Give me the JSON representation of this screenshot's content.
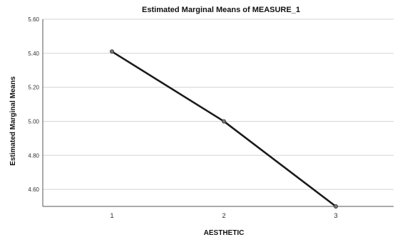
{
  "chart_data": {
    "type": "line",
    "title": "Estimated Marginal Means of MEASURE_1",
    "xlabel": "AESTHETIC",
    "ylabel": "Estimated Marginal Means",
    "categories": [
      "1",
      "2",
      "3"
    ],
    "series": [
      {
        "values": [
          5.41,
          5.0,
          4.5
        ]
      }
    ],
    "ylim": [
      4.5,
      5.6
    ],
    "yticks": [
      "4.60",
      "4.80",
      "5.00",
      "5.20",
      "5.40",
      "5.60"
    ],
    "grid": true,
    "line_color": "#1a1a1a",
    "marker_color": "#777777"
  }
}
